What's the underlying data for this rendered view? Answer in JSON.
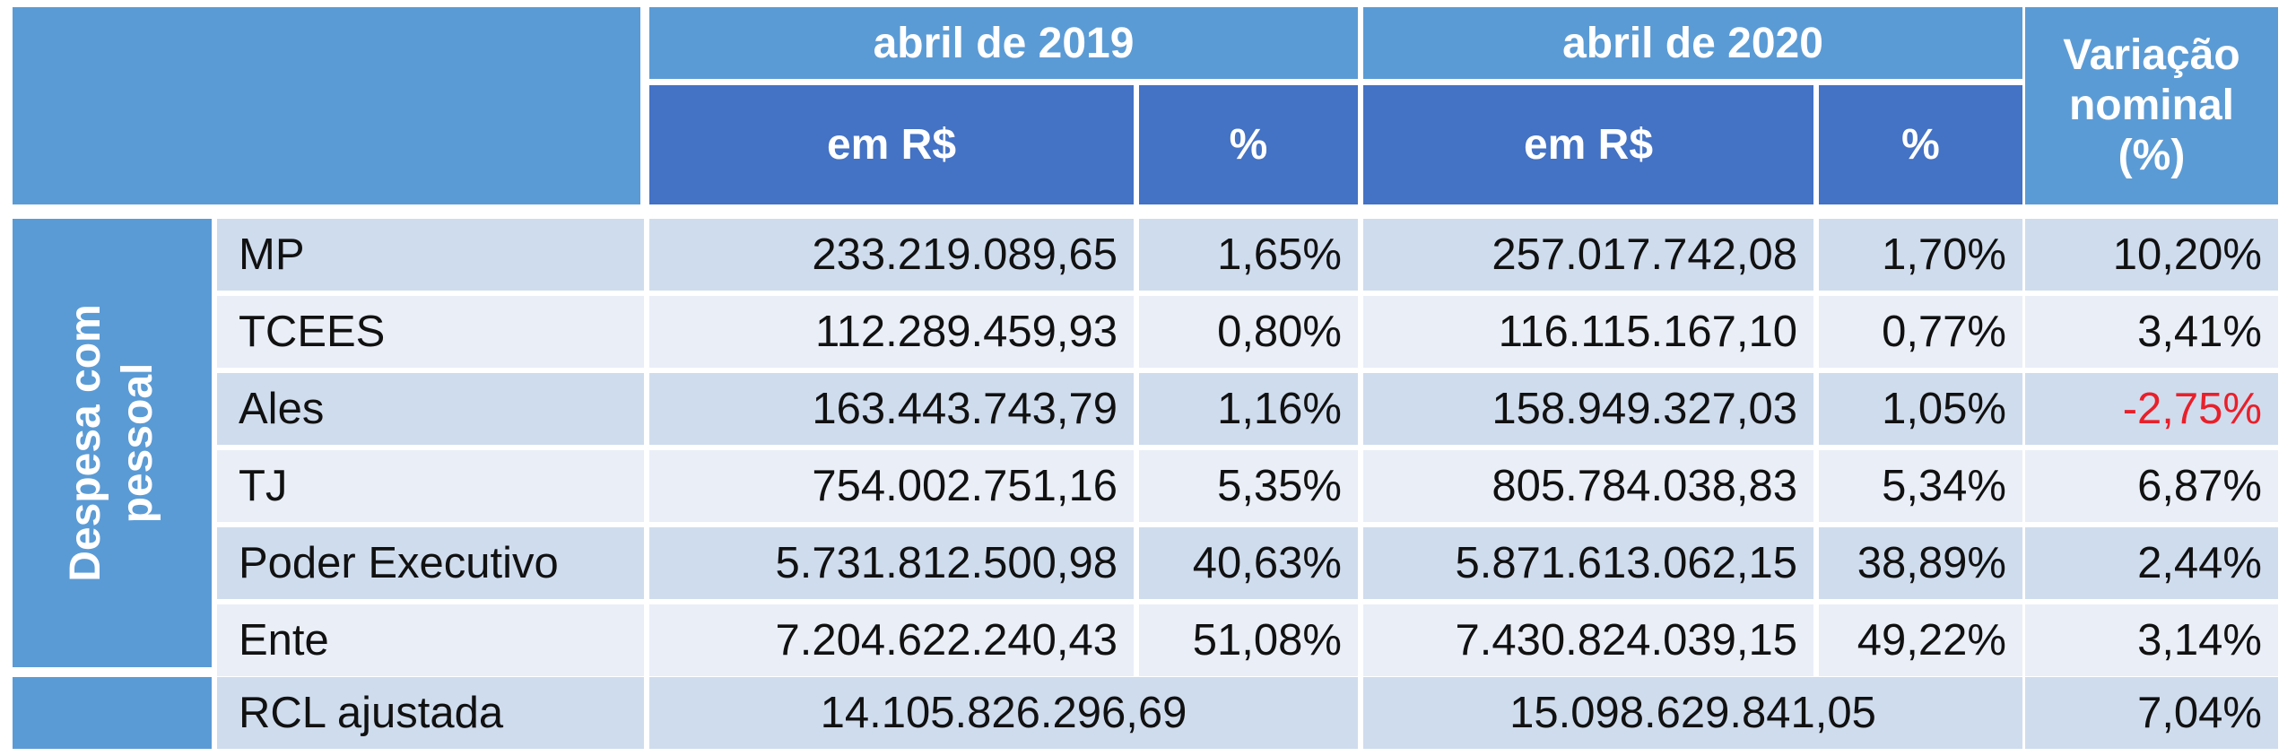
{
  "header": {
    "group_2019": "abril de 2019",
    "group_2020": "abril de 2020",
    "variation_line1": "Variação",
    "variation_line2": "nominal",
    "variation_line3": "(%)",
    "sub_rs_2019": "em R$",
    "sub_pct_2019": "%",
    "sub_rs_2020": "em R$",
    "sub_pct_2020": "%"
  },
  "side_label": {
    "line1": "Despesa com",
    "line2": "pessoal"
  },
  "rows": [
    {
      "label": "MP",
      "rs_2019": "233.219.089,65",
      "pct_2019": "1,65%",
      "rs_2020": "257.017.742,08",
      "pct_2020": "1,70%",
      "variation": "10,20%"
    },
    {
      "label": "TCEES",
      "rs_2019": "112.289.459,93",
      "pct_2019": "0,80%",
      "rs_2020": "116.115.167,10",
      "pct_2020": "0,77%",
      "variation": "3,41%"
    },
    {
      "label": "Ales",
      "rs_2019": "163.443.743,79",
      "pct_2019": "1,16%",
      "rs_2020": "158.949.327,03",
      "pct_2020": "1,05%",
      "variation": "-2,75%"
    },
    {
      "label": "TJ",
      "rs_2019": "754.002.751,16",
      "pct_2019": "5,35%",
      "rs_2020": "805.784.038,83",
      "pct_2020": "5,34%",
      "variation": "6,87%"
    },
    {
      "label": "Poder Executivo",
      "rs_2019": "5.731.812.500,98",
      "pct_2019": "40,63%",
      "rs_2020": "5.871.613.062,15",
      "pct_2020": "38,89%",
      "variation": "2,44%"
    },
    {
      "label": "Ente",
      "rs_2019": "7.204.622.240,43",
      "pct_2019": "51,08%",
      "rs_2020": "7.430.824.039,15",
      "pct_2020": "49,22%",
      "variation": "3,14%"
    }
  ],
  "total": {
    "label": "RCL ajustada",
    "value_2019": "14.105.826.296,69",
    "value_2020": "15.098.629.841,05",
    "variation": "7,04%"
  },
  "colors": {
    "header_light": "#5b9bd5",
    "header_dark": "#4472c4",
    "row_dark": "#cfdcee",
    "row_light": "#e9eef7",
    "negative": "#e8202a"
  }
}
